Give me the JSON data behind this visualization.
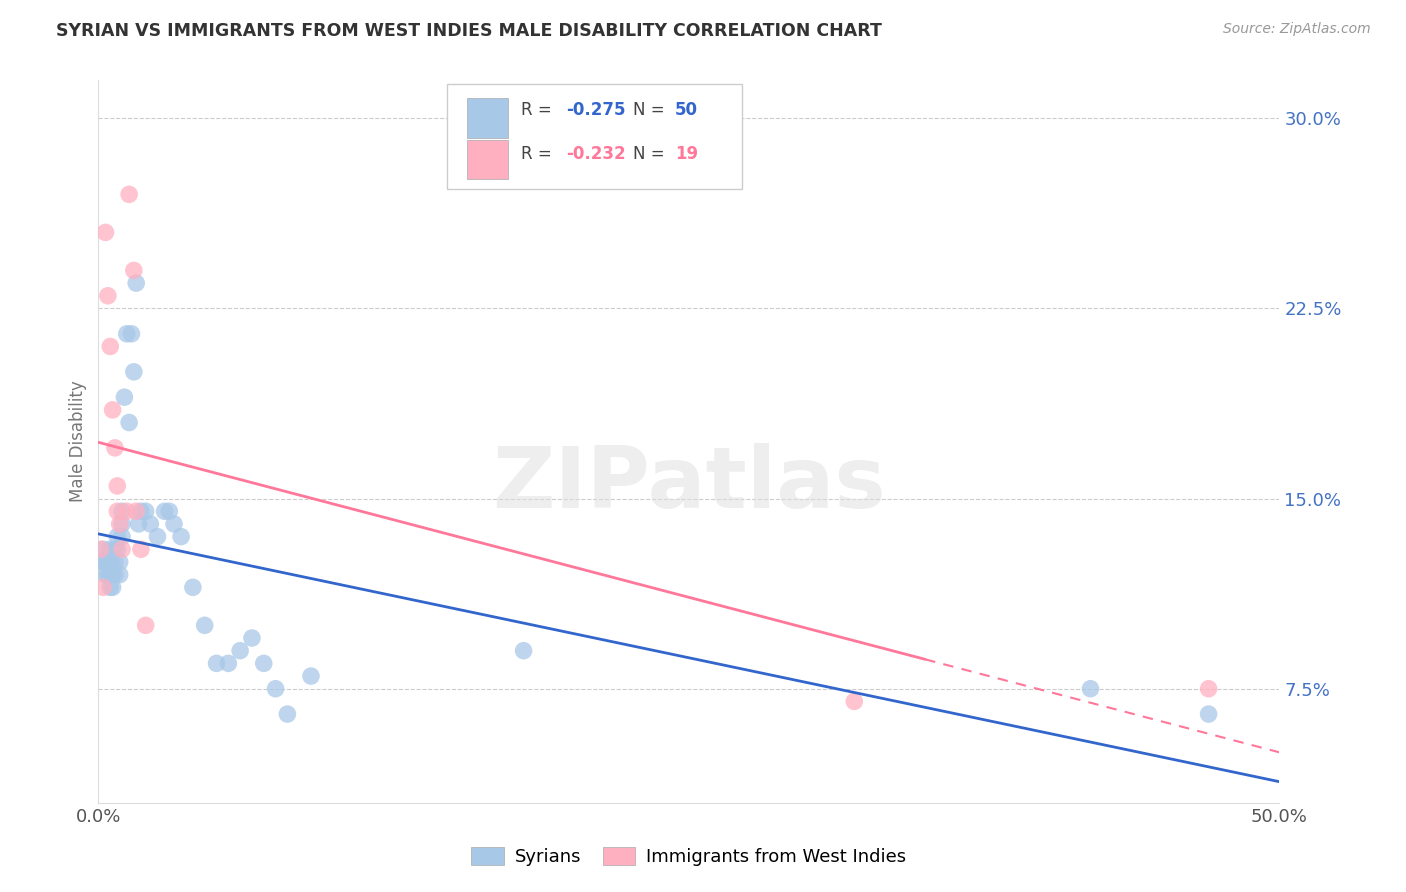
{
  "title": "SYRIAN VS IMMIGRANTS FROM WEST INDIES MALE DISABILITY CORRELATION CHART",
  "source": "Source: ZipAtlas.com",
  "ylabel": "Male Disability",
  "yticks": [
    0.075,
    0.15,
    0.225,
    0.3
  ],
  "ytick_labels": [
    "7.5%",
    "15.0%",
    "22.5%",
    "30.0%"
  ],
  "xmin": 0.0,
  "xmax": 0.5,
  "ymin": 0.03,
  "ymax": 0.315,
  "legend_label_blue": "Syrians",
  "legend_label_pink": "Immigrants from West Indies",
  "blue_scatter_color": "#A8C8E8",
  "pink_scatter_color": "#FFB0C0",
  "blue_line_color": "#3366CC",
  "pink_line_color": "#FF7799",
  "watermark_text": "ZIPatlas",
  "syrians_x": [
    0.002,
    0.002,
    0.003,
    0.003,
    0.004,
    0.004,
    0.005,
    0.005,
    0.005,
    0.005,
    0.006,
    0.006,
    0.007,
    0.007,
    0.007,
    0.008,
    0.008,
    0.009,
    0.009,
    0.01,
    0.01,
    0.01,
    0.011,
    0.012,
    0.013,
    0.014,
    0.015,
    0.016,
    0.017,
    0.018,
    0.02,
    0.022,
    0.025,
    0.028,
    0.03,
    0.032,
    0.035,
    0.04,
    0.045,
    0.05,
    0.055,
    0.06,
    0.065,
    0.07,
    0.075,
    0.08,
    0.09,
    0.18,
    0.42,
    0.47
  ],
  "syrians_y": [
    0.13,
    0.125,
    0.125,
    0.12,
    0.125,
    0.12,
    0.13,
    0.125,
    0.12,
    0.115,
    0.12,
    0.115,
    0.13,
    0.125,
    0.12,
    0.135,
    0.13,
    0.125,
    0.12,
    0.145,
    0.14,
    0.135,
    0.19,
    0.215,
    0.18,
    0.215,
    0.2,
    0.235,
    0.14,
    0.145,
    0.145,
    0.14,
    0.135,
    0.145,
    0.145,
    0.14,
    0.135,
    0.115,
    0.1,
    0.085,
    0.085,
    0.09,
    0.095,
    0.085,
    0.075,
    0.065,
    0.08,
    0.09,
    0.075,
    0.065
  ],
  "westindies_x": [
    0.001,
    0.002,
    0.003,
    0.004,
    0.005,
    0.006,
    0.007,
    0.008,
    0.008,
    0.009,
    0.01,
    0.012,
    0.013,
    0.015,
    0.016,
    0.018,
    0.02,
    0.32,
    0.47
  ],
  "westindies_y": [
    0.13,
    0.115,
    0.255,
    0.23,
    0.21,
    0.185,
    0.17,
    0.155,
    0.145,
    0.14,
    0.13,
    0.145,
    0.27,
    0.24,
    0.145,
    0.13,
    0.1,
    0.07,
    0.075
  ]
}
